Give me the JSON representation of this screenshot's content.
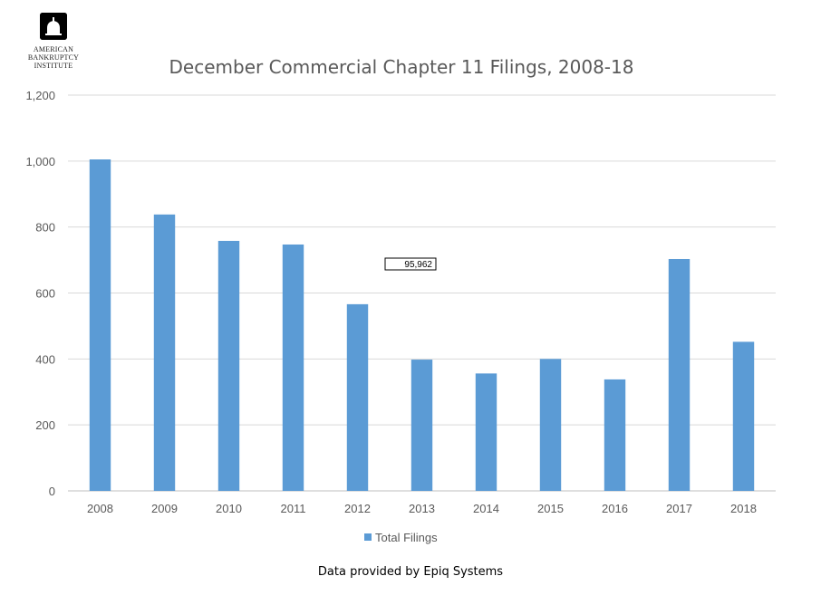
{
  "logo": {
    "icon": "capitol-dome-icon",
    "lines": [
      "AMERICAN",
      "BANKRUPTCY",
      "INSTITUTE"
    ]
  },
  "source_note": "Data provided by Epiq Systems",
  "chart_data": {
    "type": "bar",
    "title": "December Commercial Chapter 11 Filings, 2008-18",
    "xlabel": "",
    "ylabel": "",
    "categories": [
      "2008",
      "2009",
      "2010",
      "2011",
      "2012",
      "2013",
      "2014",
      "2015",
      "2016",
      "2017",
      "2018"
    ],
    "series": [
      {
        "name": "Total Filings",
        "color": "#5b9bd5",
        "values": [
          1005,
          838,
          758,
          747,
          566,
          398,
          356,
          400,
          338,
          703,
          452
        ]
      }
    ],
    "ylim": [
      0,
      1200
    ],
    "yticks": [
      0,
      200,
      400,
      600,
      800,
      1000,
      1200
    ],
    "ytick_labels": [
      "0",
      "200",
      "400",
      "600",
      "800",
      "1,000",
      "1,200"
    ],
    "grid": true,
    "legend": "bottom",
    "annotation": {
      "text": "95,962"
    }
  }
}
